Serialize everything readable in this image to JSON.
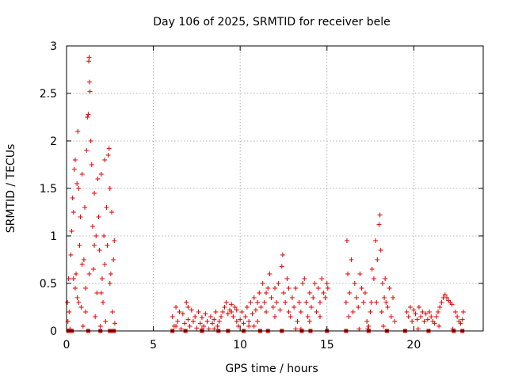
{
  "chart_data": {
    "type": "scatter",
    "title": "Day 106 of 2025, SRMTID for receiver bele",
    "xlabel": "GPS time / hours",
    "ylabel": "SRMTID / TECUs",
    "xlim": [
      0,
      24
    ],
    "ylim": [
      0,
      3
    ],
    "xticks": [
      0,
      5,
      10,
      15,
      20
    ],
    "xtick_labels": [
      "0",
      "5",
      "10",
      "15",
      "20"
    ],
    "yticks": [
      0,
      0.5,
      1,
      1.5,
      2,
      2.5,
      3
    ],
    "ytick_labels": [
      "0",
      "0.5",
      "1",
      "1.5",
      "2",
      "2.5",
      "3"
    ],
    "grid": true,
    "marker": "+",
    "series": [
      {
        "name": "SRMTID",
        "color": "#e00000",
        "points": [
          [
            0.05,
            0.3
          ],
          [
            0.08,
            0.1
          ],
          [
            0.12,
            0.55
          ],
          [
            0.15,
            0.2
          ],
          [
            0.2,
            0.02
          ],
          [
            0.25,
            0.8
          ],
          [
            0.3,
            1.05
          ],
          [
            0.35,
            1.4
          ],
          [
            0.4,
            1.25
          ],
          [
            0.45,
            1.7
          ],
          [
            0.5,
            1.8
          ],
          [
            0.55,
            0.6
          ],
          [
            0.6,
            1.55
          ],
          [
            0.62,
            0.35
          ],
          [
            0.65,
            2.1
          ],
          [
            0.7,
            1.5
          ],
          [
            0.75,
            0.9
          ],
          [
            0.8,
            1.2
          ],
          [
            0.85,
            0.25
          ],
          [
            0.9,
            1.65
          ],
          [
            0.95,
            0.05
          ],
          [
            1.0,
            0.75
          ],
          [
            1.05,
            1.3
          ],
          [
            1.1,
            0.45
          ],
          [
            1.15,
            1.9
          ],
          [
            1.2,
            2.25
          ],
          [
            1.25,
            2.28
          ],
          [
            1.28,
            2.84
          ],
          [
            1.3,
            2.88
          ],
          [
            1.32,
            2.62
          ],
          [
            1.35,
            2.52
          ],
          [
            1.4,
            2.0
          ],
          [
            1.45,
            1.75
          ],
          [
            1.5,
            1.1
          ],
          [
            1.55,
            0.65
          ],
          [
            1.6,
            1.45
          ],
          [
            1.65,
            0.15
          ],
          [
            1.7,
            1.0
          ],
          [
            1.75,
            0.4
          ],
          [
            1.8,
            1.6
          ],
          [
            1.85,
            1.2
          ],
          [
            1.9,
            0.85
          ],
          [
            1.95,
            0.05
          ],
          [
            2.0,
            1.65
          ],
          [
            2.05,
            0.55
          ],
          [
            2.1,
            0.3
          ],
          [
            2.15,
            1.0
          ],
          [
            2.2,
            0.7
          ],
          [
            2.25,
            0.1
          ],
          [
            2.3,
            1.3
          ],
          [
            2.35,
            0.9
          ],
          [
            2.4,
            1.85
          ],
          [
            2.45,
            1.92
          ],
          [
            2.5,
            1.5
          ],
          [
            2.55,
            0.6
          ],
          [
            2.6,
            1.25
          ],
          [
            2.65,
            0.2
          ],
          [
            2.7,
            0.75
          ],
          [
            2.75,
            0.95
          ],
          [
            2.78,
            0.08
          ],
          [
            0.4,
            0.55
          ],
          [
            0.5,
            0.45
          ],
          [
            0.9,
            0.7
          ],
          [
            1.1,
            0.2
          ],
          [
            1.6,
            0.9
          ],
          [
            2.0,
            0.4
          ],
          [
            2.2,
            1.8
          ],
          [
            0.7,
            0.3
          ],
          [
            1.3,
            0.6
          ],
          [
            2.5,
            0.5
          ],
          [
            6.1,
            0.15
          ],
          [
            6.2,
            0.05
          ],
          [
            6.3,
            0.25
          ],
          [
            6.4,
            0.1
          ],
          [
            6.5,
            0.2
          ],
          [
            6.6,
            0.02
          ],
          [
            6.7,
            0.18
          ],
          [
            6.8,
            0.08
          ],
          [
            6.9,
            0.3
          ],
          [
            7.0,
            0.12
          ],
          [
            7.1,
            0.05
          ],
          [
            7.2,
            0.22
          ],
          [
            7.3,
            0.1
          ],
          [
            7.4,
            0.15
          ],
          [
            7.5,
            0.03
          ],
          [
            7.6,
            0.2
          ],
          [
            7.7,
            0.08
          ],
          [
            7.8,
            0.14
          ],
          [
            7.9,
            0.05
          ],
          [
            8.0,
            0.18
          ],
          [
            8.1,
            0.1
          ],
          [
            8.2,
            0.02
          ],
          [
            8.3,
            0.15
          ],
          [
            8.4,
            0.08
          ],
          [
            8.5,
            0.12
          ],
          [
            8.6,
            0.2
          ],
          [
            8.7,
            0.05
          ],
          [
            8.8,
            0.1
          ],
          [
            8.9,
            0.15
          ],
          [
            9.0,
            0.2
          ],
          [
            9.1,
            0.25
          ],
          [
            9.2,
            0.3
          ],
          [
            9.3,
            0.18
          ],
          [
            9.4,
            0.22
          ],
          [
            9.5,
            0.28
          ],
          [
            9.6,
            0.15
          ],
          [
            9.7,
            0.25
          ],
          [
            9.8,
            0.1
          ],
          [
            9.9,
            0.05
          ],
          [
            10.0,
            0.12
          ],
          [
            10.1,
            0.2
          ],
          [
            10.2,
            0.08
          ],
          [
            10.3,
            0.15
          ],
          [
            10.4,
            0.25
          ],
          [
            10.5,
            0.1
          ],
          [
            10.6,
            0.3
          ],
          [
            10.7,
            0.18
          ],
          [
            10.8,
            0.35
          ],
          [
            10.9,
            0.22
          ],
          [
            11.0,
            0.3
          ],
          [
            11.1,
            0.4
          ],
          [
            11.2,
            0.25
          ],
          [
            11.3,
            0.5
          ],
          [
            11.4,
            0.3
          ],
          [
            11.5,
            0.2
          ],
          [
            11.6,
            0.45
          ],
          [
            11.7,
            0.6
          ],
          [
            11.8,
            0.35
          ],
          [
            11.9,
            0.25
          ],
          [
            12.0,
            0.15
          ],
          [
            12.1,
            0.3
          ],
          [
            12.2,
            0.5
          ],
          [
            12.3,
            0.22
          ],
          [
            12.4,
            0.68
          ],
          [
            12.45,
            0.8
          ],
          [
            12.5,
            0.4
          ],
          [
            12.6,
            0.3
          ],
          [
            12.7,
            0.55
          ],
          [
            12.8,
            0.2
          ],
          [
            12.9,
            0.15
          ],
          [
            13.0,
            0.35
          ],
          [
            13.1,
            0.25
          ],
          [
            13.2,
            0.45
          ],
          [
            13.3,
            0.1
          ],
          [
            13.4,
            0.3
          ],
          [
            13.5,
            0.2
          ],
          [
            13.6,
            0.5
          ],
          [
            13.7,
            0.55
          ],
          [
            13.8,
            0.3
          ],
          [
            13.9,
            0.15
          ],
          [
            14.0,
            0.4
          ],
          [
            14.1,
            0.25
          ],
          [
            14.2,
            0.35
          ],
          [
            14.3,
            0.5
          ],
          [
            14.4,
            0.2
          ],
          [
            14.5,
            0.45
          ],
          [
            14.6,
            0.3
          ],
          [
            14.7,
            0.55
          ],
          [
            14.8,
            0.4
          ],
          [
            14.9,
            0.35
          ],
          [
            15.0,
            0.5
          ],
          [
            15.05,
            0.45
          ],
          [
            6.3,
            0.05
          ],
          [
            7.0,
            0.25
          ],
          [
            7.8,
            0.02
          ],
          [
            8.5,
            0.02
          ],
          [
            9.5,
            0.2
          ],
          [
            10.5,
            0.05
          ],
          [
            11.5,
            0.4
          ],
          [
            12.0,
            0.45
          ],
          [
            13.5,
            0.02
          ],
          [
            14.0,
            0.1
          ],
          [
            14.6,
            0.15
          ],
          [
            11.0,
            0.1
          ],
          [
            12.8,
            0.45
          ],
          [
            13.2,
            0.02
          ],
          [
            10.8,
            0.05
          ],
          [
            9.8,
            0.22
          ],
          [
            16.1,
            0.3
          ],
          [
            16.15,
            0.95
          ],
          [
            16.2,
            0.6
          ],
          [
            16.3,
            0.4
          ],
          [
            16.4,
            0.75
          ],
          [
            16.5,
            0.2
          ],
          [
            16.6,
            0.5
          ],
          [
            16.7,
            0.35
          ],
          [
            16.8,
            0.25
          ],
          [
            16.9,
            0.6
          ],
          [
            17.0,
            0.45
          ],
          [
            17.1,
            0.3
          ],
          [
            17.2,
            0.4
          ],
          [
            17.3,
            0.1
          ],
          [
            17.35,
            0.02
          ],
          [
            17.4,
            0.05
          ],
          [
            17.5,
            0.2
          ],
          [
            17.6,
            0.65
          ],
          [
            17.7,
            0.55
          ],
          [
            17.8,
            0.95
          ],
          [
            17.85,
            0.3
          ],
          [
            17.9,
            0.75
          ],
          [
            18.0,
            1.12
          ],
          [
            18.05,
            1.22
          ],
          [
            18.1,
            0.85
          ],
          [
            18.15,
            0.2
          ],
          [
            18.2,
            0.5
          ],
          [
            18.3,
            0.35
          ],
          [
            18.4,
            0.3
          ],
          [
            18.5,
            0.25
          ],
          [
            18.6,
            0.45
          ],
          [
            18.7,
            0.15
          ],
          [
            18.8,
            0.35
          ],
          [
            18.9,
            0.1
          ],
          [
            16.25,
            0.15
          ],
          [
            16.85,
            0.02
          ],
          [
            17.55,
            0.3
          ],
          [
            18.25,
            0.05
          ],
          [
            18.35,
            0.55
          ],
          [
            19.6,
            0.2
          ],
          [
            19.7,
            0.15
          ],
          [
            19.8,
            0.25
          ],
          [
            19.9,
            0.1
          ],
          [
            20.0,
            0.22
          ],
          [
            20.1,
            0.18
          ],
          [
            20.2,
            0.12
          ],
          [
            20.3,
            0.25
          ],
          [
            20.4,
            0.15
          ],
          [
            20.5,
            0.2
          ],
          [
            20.6,
            0.1
          ],
          [
            20.7,
            0.18
          ],
          [
            20.8,
            0.12
          ],
          [
            20.9,
            0.2
          ],
          [
            21.0,
            0.15
          ],
          [
            21.1,
            0.1
          ],
          [
            21.2,
            0.08
          ],
          [
            21.3,
            0.15
          ],
          [
            21.4,
            0.2
          ],
          [
            21.5,
            0.25
          ],
          [
            21.6,
            0.3
          ],
          [
            21.7,
            0.35
          ],
          [
            21.8,
            0.38
          ],
          [
            21.9,
            0.35
          ],
          [
            22.0,
            0.32
          ],
          [
            22.1,
            0.3
          ],
          [
            22.2,
            0.28
          ],
          [
            22.25,
            0.02
          ],
          [
            22.4,
            0.2
          ],
          [
            22.5,
            0.15
          ],
          [
            22.6,
            0.1
          ],
          [
            22.7,
            0.08
          ],
          [
            22.8,
            0.12
          ],
          [
            22.85,
            0.2
          ],
          [
            20.25,
            0.02
          ],
          [
            21.45,
            0.05
          ]
        ],
        "zero_markers": [
          0.1,
          0.3,
          1.25,
          1.95,
          2.5,
          2.72,
          6.1,
          6.85,
          7.8,
          8.75,
          9.3,
          10.2,
          11.15,
          11.6,
          12.4,
          13.55,
          14.05,
          15.0,
          16.1,
          17.4,
          18.45,
          19.5,
          20.85,
          22.3,
          22.8
        ]
      }
    ]
  }
}
